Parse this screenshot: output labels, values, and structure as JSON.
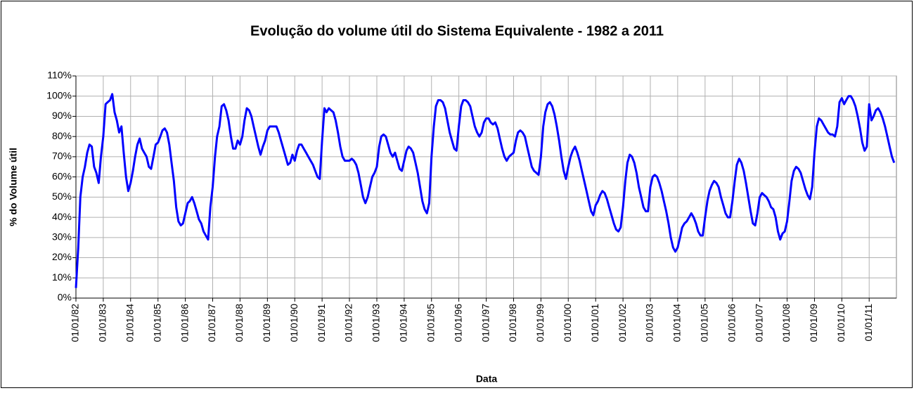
{
  "chart_data": {
    "type": "line",
    "title": "Evolução do volume útil do Sistema Equivalente - 1982 a 2011",
    "x_label": "Data",
    "y_label": "% do Volume útil",
    "xlim": [
      "01/01/82",
      "31/12/11"
    ],
    "xticks": [
      "01/01/82",
      "01/01/83",
      "01/01/84",
      "01/01/85",
      "01/01/86",
      "01/01/87",
      "01/01/88",
      "01/01/89",
      "01/01/90",
      "01/01/91",
      "01/01/92",
      "01/01/93",
      "01/01/94",
      "01/01/95",
      "01/01/96",
      "01/01/97",
      "01/01/98",
      "01/01/99",
      "01/01/00",
      "01/01/01",
      "01/01/02",
      "01/01/03",
      "01/01/04",
      "01/01/05",
      "01/01/06",
      "01/01/07",
      "01/01/08",
      "01/01/09",
      "01/01/10",
      "01/01/11"
    ],
    "ylim": [
      0,
      110
    ],
    "yticks": [
      {
        "value": 0,
        "label": "0%"
      },
      {
        "value": 10,
        "label": "10%"
      },
      {
        "value": 20,
        "label": "20%"
      },
      {
        "value": 30,
        "label": "30%"
      },
      {
        "value": 40,
        "label": "40%"
      },
      {
        "value": 50,
        "label": "50%"
      },
      {
        "value": 60,
        "label": "60%"
      },
      {
        "value": 70,
        "label": "70%"
      },
      {
        "value": 80,
        "label": "80%"
      },
      {
        "value": 90,
        "label": "90%"
      },
      {
        "value": 100,
        "label": "100%"
      },
      {
        "value": 110,
        "label": "110%"
      }
    ],
    "grid": true,
    "x": [
      "01/01/82",
      "01/02/82",
      "01/03/82",
      "01/04/82",
      "01/05/82",
      "01/06/82",
      "01/07/82",
      "01/08/82",
      "01/09/82",
      "01/10/82",
      "01/11/82",
      "01/12/82",
      "01/01/83",
      "01/02/83",
      "01/03/83",
      "01/04/83",
      "01/05/83",
      "01/06/83",
      "01/07/83",
      "01/08/83",
      "01/09/83",
      "01/10/83",
      "01/11/83",
      "01/12/83",
      "01/01/84",
      "01/02/84",
      "01/03/84",
      "01/04/84",
      "01/05/84",
      "01/06/84",
      "01/07/84",
      "01/08/84",
      "01/09/84",
      "01/10/84",
      "01/11/84",
      "01/12/84",
      "01/01/85",
      "01/02/85",
      "01/03/85",
      "01/04/85",
      "01/05/85",
      "01/06/85",
      "01/07/85",
      "01/08/85",
      "01/09/85",
      "01/10/85",
      "01/11/85",
      "01/12/85",
      "01/01/86",
      "01/02/86",
      "01/03/86",
      "01/04/86",
      "01/05/86",
      "01/06/86",
      "01/07/86",
      "01/08/86",
      "01/09/86",
      "01/10/86",
      "01/11/86",
      "01/12/86",
      "01/01/87",
      "01/02/87",
      "01/03/87",
      "01/04/87",
      "01/05/87",
      "01/06/87",
      "01/07/87",
      "01/08/87",
      "01/09/87",
      "01/10/87",
      "01/11/87",
      "01/12/87",
      "01/01/88",
      "01/02/88",
      "01/03/88",
      "01/04/88",
      "01/05/88",
      "01/06/88",
      "01/07/88",
      "01/08/88",
      "01/09/88",
      "01/10/88",
      "01/11/88",
      "01/12/88",
      "01/01/89",
      "01/02/89",
      "01/03/89",
      "01/04/89",
      "01/05/89",
      "01/06/89",
      "01/07/89",
      "01/08/89",
      "01/09/89",
      "01/10/89",
      "01/11/89",
      "01/12/89",
      "01/01/90",
      "01/02/90",
      "01/03/90",
      "01/04/90",
      "01/05/90",
      "01/06/90",
      "01/07/90",
      "01/08/90",
      "01/09/90",
      "01/10/90",
      "01/11/90",
      "01/12/90",
      "01/01/91",
      "01/02/91",
      "01/03/91",
      "01/04/91",
      "01/05/91",
      "01/06/91",
      "01/07/91",
      "01/08/91",
      "01/09/91",
      "01/10/91",
      "01/11/91",
      "01/12/91",
      "01/01/92",
      "01/02/92",
      "01/03/92",
      "01/04/92",
      "01/05/92",
      "01/06/92",
      "01/07/92",
      "01/08/92",
      "01/09/92",
      "01/10/92",
      "01/11/92",
      "01/12/92",
      "01/01/93",
      "01/02/93",
      "01/03/93",
      "01/04/93",
      "01/05/93",
      "01/06/93",
      "01/07/93",
      "01/08/93",
      "01/09/93",
      "01/10/93",
      "01/11/93",
      "01/12/93",
      "01/01/94",
      "01/02/94",
      "01/03/94",
      "01/04/94",
      "01/05/94",
      "01/06/94",
      "01/07/94",
      "01/08/94",
      "01/09/94",
      "01/10/94",
      "01/11/94",
      "01/12/94",
      "01/01/95",
      "01/02/95",
      "01/03/95",
      "01/04/95",
      "01/05/95",
      "01/06/95",
      "01/07/95",
      "01/08/95",
      "01/09/95",
      "01/10/95",
      "01/11/95",
      "01/12/95",
      "01/01/96",
      "01/02/96",
      "01/03/96",
      "01/04/96",
      "01/05/96",
      "01/06/96",
      "01/07/96",
      "01/08/96",
      "01/09/96",
      "01/10/96",
      "01/11/96",
      "01/12/96",
      "01/01/97",
      "01/02/97",
      "01/03/97",
      "01/04/97",
      "01/05/97",
      "01/06/97",
      "01/07/97",
      "01/08/97",
      "01/09/97",
      "01/10/97",
      "01/11/97",
      "01/12/97",
      "01/01/98",
      "01/02/98",
      "01/03/98",
      "01/04/98",
      "01/05/98",
      "01/06/98",
      "01/07/98",
      "01/08/98",
      "01/09/98",
      "01/10/98",
      "01/11/98",
      "01/12/98",
      "01/01/99",
      "01/02/99",
      "01/03/99",
      "01/04/99",
      "01/05/99",
      "01/06/99",
      "01/07/99",
      "01/08/99",
      "01/09/99",
      "01/10/99",
      "01/11/99",
      "01/12/99",
      "01/01/00",
      "01/02/00",
      "01/03/00",
      "01/04/00",
      "01/05/00",
      "01/06/00",
      "01/07/00",
      "01/08/00",
      "01/09/00",
      "01/10/00",
      "01/11/00",
      "01/12/00",
      "01/01/01",
      "01/02/01",
      "01/03/01",
      "01/04/01",
      "01/05/01",
      "01/06/01",
      "01/07/01",
      "01/08/01",
      "01/09/01",
      "01/10/01",
      "01/11/01",
      "01/12/01",
      "01/01/02",
      "01/02/02",
      "01/03/02",
      "01/04/02",
      "01/05/02",
      "01/06/02",
      "01/07/02",
      "01/08/02",
      "01/09/02",
      "01/10/02",
      "01/11/02",
      "01/12/02",
      "01/01/03",
      "01/02/03",
      "01/03/03",
      "01/04/03",
      "01/05/03",
      "01/06/03",
      "01/07/03",
      "01/08/03",
      "01/09/03",
      "01/10/03",
      "01/11/03",
      "01/12/03",
      "01/01/04",
      "01/02/04",
      "01/03/04",
      "01/04/04",
      "01/05/04",
      "01/06/04",
      "01/07/04",
      "01/08/04",
      "01/09/04",
      "01/10/04",
      "01/11/04",
      "01/12/04",
      "01/01/05",
      "01/02/05",
      "01/03/05",
      "01/04/05",
      "01/05/05",
      "01/06/05",
      "01/07/05",
      "01/08/05",
      "01/09/05",
      "01/10/05",
      "01/11/05",
      "01/12/05",
      "01/01/06",
      "01/02/06",
      "01/03/06",
      "01/04/06",
      "01/05/06",
      "01/06/06",
      "01/07/06",
      "01/08/06",
      "01/09/06",
      "01/10/06",
      "01/11/06",
      "01/12/06",
      "01/01/07",
      "01/02/07",
      "01/03/07",
      "01/04/07",
      "01/05/07",
      "01/06/07",
      "01/07/07",
      "01/08/07",
      "01/09/07",
      "01/10/07",
      "01/11/07",
      "01/12/07",
      "01/01/08",
      "01/02/08",
      "01/03/08",
      "01/04/08",
      "01/05/08",
      "01/06/08",
      "01/07/08",
      "01/08/08",
      "01/09/08",
      "01/10/08",
      "01/11/08",
      "01/12/08",
      "01/01/09",
      "01/02/09",
      "01/03/09",
      "01/04/09",
      "01/05/09",
      "01/06/09",
      "01/07/09",
      "01/08/09",
      "01/09/09",
      "01/10/09",
      "01/11/09",
      "01/12/09",
      "01/01/10",
      "01/02/10",
      "01/03/10",
      "01/04/10",
      "01/05/10",
      "01/06/10",
      "01/07/10",
      "01/08/10",
      "01/09/10",
      "01/10/10",
      "01/11/10",
      "01/12/10",
      "01/01/11",
      "01/02/11",
      "01/03/11",
      "01/04/11",
      "01/05/11",
      "01/06/11",
      "01/07/11",
      "01/08/11",
      "01/09/11",
      "01/10/11",
      "01/11/11",
      "01/12/11"
    ],
    "series": [
      {
        "color": "#0000ff",
        "values": [
          5,
          25,
          50,
          60,
          65,
          72,
          76,
          75,
          65,
          62,
          57,
          70,
          80,
          96,
          97,
          98,
          101,
          92,
          88,
          82,
          85,
          72,
          60,
          53,
          57,
          63,
          70,
          76,
          79,
          74,
          72,
          70,
          65,
          64,
          70,
          76,
          77,
          80,
          83,
          84,
          82,
          76,
          67,
          58,
          45,
          38,
          36,
          37,
          42,
          47,
          48,
          50,
          47,
          43,
          39,
          37,
          33,
          31,
          29,
          45,
          55,
          70,
          80,
          85,
          95,
          96,
          93,
          88,
          80,
          74,
          74,
          78,
          76,
          80,
          88,
          94,
          93,
          90,
          85,
          80,
          75,
          71,
          75,
          78,
          83,
          85,
          85,
          85,
          85,
          82,
          78,
          74,
          70,
          66,
          67,
          71,
          68,
          73,
          76,
          76,
          74,
          72,
          70,
          68,
          66,
          63,
          60,
          59,
          78,
          94,
          92,
          94,
          93,
          92,
          88,
          82,
          75,
          70,
          68,
          68,
          68,
          69,
          68,
          66,
          62,
          56,
          50,
          47,
          50,
          55,
          60,
          62,
          65,
          75,
          80,
          81,
          80,
          76,
          72,
          70,
          72,
          68,
          64,
          63,
          68,
          73,
          75,
          74,
          72,
          67,
          62,
          55,
          48,
          44,
          42,
          47,
          70,
          85,
          95,
          98,
          98,
          97,
          94,
          88,
          82,
          78,
          74,
          73,
          85,
          95,
          98,
          98,
          97,
          95,
          90,
          85,
          82,
          80,
          82,
          87,
          89,
          89,
          87,
          86,
          87,
          84,
          79,
          74,
          70,
          68,
          70,
          71,
          72,
          78,
          82,
          83,
          82,
          80,
          75,
          70,
          65,
          63,
          62,
          61,
          70,
          85,
          92,
          96,
          97,
          95,
          91,
          85,
          78,
          70,
          63,
          59,
          65,
          70,
          73,
          75,
          72,
          68,
          63,
          58,
          53,
          48,
          43,
          41,
          46,
          48,
          51,
          53,
          52,
          49,
          45,
          41,
          37,
          34,
          33,
          35,
          45,
          58,
          67,
          71,
          70,
          67,
          62,
          55,
          50,
          45,
          43,
          43,
          55,
          60,
          61,
          60,
          57,
          53,
          48,
          43,
          37,
          30,
          25,
          23,
          25,
          30,
          35,
          37,
          38,
          40,
          42,
          40,
          37,
          33,
          31,
          31,
          40,
          48,
          53,
          56,
          58,
          57,
          55,
          50,
          46,
          42,
          40,
          40,
          48,
          58,
          66,
          69,
          67,
          63,
          57,
          50,
          43,
          37,
          36,
          42,
          50,
          52,
          51,
          50,
          48,
          45,
          44,
          40,
          33,
          29,
          32,
          33,
          38,
          48,
          58,
          63,
          65,
          64,
          62,
          58,
          54,
          51,
          49,
          55,
          72,
          85,
          89,
          88,
          86,
          84,
          82,
          81,
          81,
          80,
          85,
          97,
          99,
          96,
          98,
          100,
          100,
          98,
          95,
          90,
          84,
          77,
          73,
          75,
          96,
          88,
          90,
          93,
          94,
          92,
          89,
          85,
          80,
          75,
          70,
          67
        ]
      }
    ]
  }
}
